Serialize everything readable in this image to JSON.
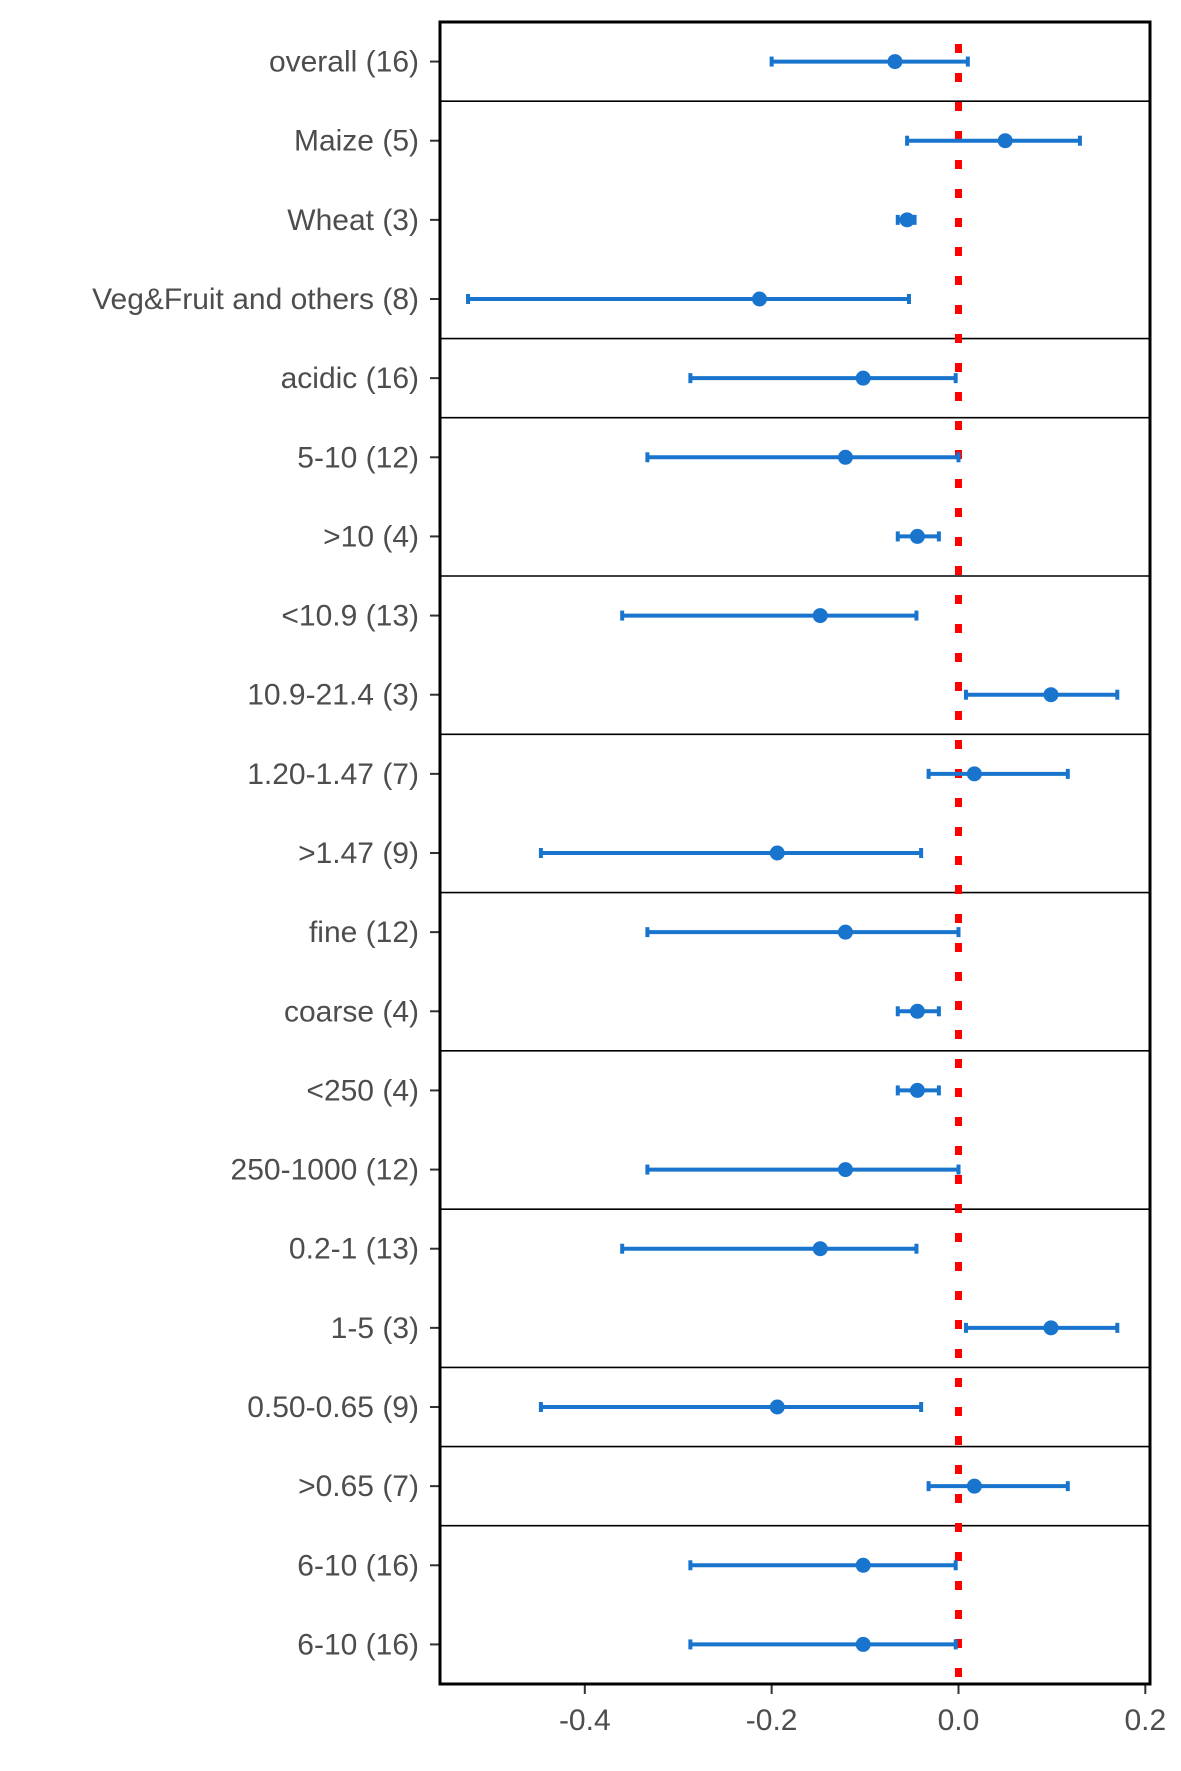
{
  "chart_data": {
    "type": "forest",
    "title": "",
    "xlabel": "",
    "ylabel": "",
    "xlim": [
      -0.555,
      0.205
    ],
    "x_ticks": [
      {
        "value": -0.4,
        "label": "-0.4"
      },
      {
        "value": -0.2,
        "label": "-0.2"
      },
      {
        "value": 0.0,
        "label": "0.0"
      },
      {
        "value": 0.2,
        "label": "0.2"
      }
    ],
    "reference_line": {
      "x": 0.0,
      "style": "dotted",
      "color": "#ff0000"
    },
    "point_color": "#1874cd",
    "group_sizes": [
      1,
      3,
      1,
      2,
      2,
      2,
      2,
      2,
      2,
      1,
      1,
      1
    ],
    "rows": [
      {
        "label": "overall (16)",
        "estimate": -0.068,
        "lower": -0.2,
        "upper": 0.01
      },
      {
        "label": "Maize (5)",
        "estimate": 0.05,
        "lower": -0.055,
        "upper": 0.13
      },
      {
        "label": "Wheat (3)",
        "estimate": -0.055,
        "lower": -0.065,
        "upper": -0.047
      },
      {
        "label": "Veg&Fruit and others (8)",
        "estimate": -0.213,
        "lower": -0.525,
        "upper": -0.053
      },
      {
        "label": "acidic (16)",
        "estimate": -0.102,
        "lower": -0.287,
        "upper": -0.003
      },
      {
        "label": "5-10 (12)",
        "estimate": -0.121,
        "lower": -0.333,
        "upper": 0.0
      },
      {
        "label": ">10 (4)",
        "estimate": -0.044,
        "lower": -0.065,
        "upper": -0.021
      },
      {
        "label": "<10.9 (13)",
        "estimate": -0.148,
        "lower": -0.36,
        "upper": -0.045
      },
      {
        "label": "10.9-21.4 (3)",
        "estimate": 0.099,
        "lower": 0.008,
        "upper": 0.17
      },
      {
        "label": "1.20-1.47 (7)",
        "estimate": 0.017,
        "lower": -0.032,
        "upper": 0.117
      },
      {
        "label": ">1.47 (9)",
        "estimate": -0.194,
        "lower": -0.447,
        "upper": -0.04
      },
      {
        "label": "fine (12)",
        "estimate": -0.121,
        "lower": -0.333,
        "upper": 0.0
      },
      {
        "label": "coarse (4)",
        "estimate": -0.044,
        "lower": -0.065,
        "upper": -0.021
      },
      {
        "label": "<250 (4)",
        "estimate": -0.044,
        "lower": -0.065,
        "upper": -0.021
      },
      {
        "label": "250-1000 (12)",
        "estimate": -0.121,
        "lower": -0.333,
        "upper": 0.0
      },
      {
        "label": "0.2-1 (13)",
        "estimate": -0.148,
        "lower": -0.36,
        "upper": -0.045
      },
      {
        "label": "1-5 (3)",
        "estimate": 0.099,
        "lower": 0.008,
        "upper": 0.17
      },
      {
        "label": "0.50-0.65 (9)",
        "estimate": -0.194,
        "lower": -0.447,
        "upper": -0.04
      },
      {
        "label": ">0.65 (7)",
        "estimate": 0.017,
        "lower": -0.032,
        "upper": 0.117
      },
      {
        "label": "6-10 (16)",
        "estimate": -0.102,
        "lower": -0.287,
        "upper": -0.003
      },
      {
        "label": "6-10 (16)",
        "estimate": -0.102,
        "lower": -0.287,
        "upper": -0.003
      }
    ]
  }
}
